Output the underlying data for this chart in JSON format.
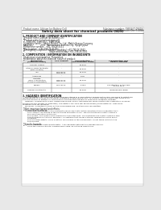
{
  "bg_color": "#e8e8e8",
  "page_bg": "#ffffff",
  "title": "Safety data sheet for chemical products (SDS)",
  "header_left": "Product name: Lithium Ion Battery Cell",
  "header_right_line1": "Substance number: 5SB345T-09019",
  "header_right_line2": "Established / Revision: Dec.7.2016",
  "section1_title": "1. PRODUCT AND COMPANY IDENTIFICATION",
  "section1_lines": [
    "・Product name: Lithium Ion Battery Cell",
    "・Product code: Cylindrical-type cell",
    "     5SB339U, 5SB339UC, 5SB339UA",
    "・Company name:    Sanyo Electric Co., Ltd.  Mobile Energy Company",
    "・Address:            2001  Kaminokawa, Sumoto-City, Hyogo, Japan",
    "・Telephone number:   +81-799-26-4111",
    "・Fax number:   +81-799-26-4129",
    "・Emergency telephone number (Weekday) +81-799-26-3562",
    "                                           (Night and holiday) +81-799-26-3101"
  ],
  "section2_title": "2. COMPOSITION / INFORMATION ON INGREDIENTS",
  "section2_intro": "・Substance or preparation: Preparation",
  "section2_sub": "・Information about the chemical nature of product:",
  "table_headers": [
    "Component\n(Chemical name)",
    "CAS number",
    "Concentration /\nConcentration range",
    "Classification and\nhazard labeling"
  ],
  "table_col1": [
    "Several names",
    "Lithium oxide tantalate\n(LiMn₂CoNiO₂)",
    "Iron",
    "Aluminum",
    "Graphite\n(Mod.in graphite1)\n(Artific.in graphite2)",
    "Copper",
    "Organic electrolyte"
  ],
  "table_col2": [
    "-",
    "-",
    "7439-89-6\n7429-90-5",
    "-",
    "7782-42-5\n7782-42-5",
    "7440-50-8",
    "-"
  ],
  "table_col3": [
    "20-50%",
    "20-50%",
    "15-25%",
    "2-6%",
    "10-25%",
    "5-15%",
    "10-20%"
  ],
  "table_col4": [
    "-",
    "-",
    "-",
    "-",
    "-",
    "Sensitization of the skin\ngroup No.2",
    "Inflammable liquid"
  ],
  "section3_title": "3. HAZARDS IDENTIFICATION",
  "section3_lines": [
    "    For the battery cell, chemical substances are stored in a hermetically sealed metal case, designed to withstand",
    "temperatures in process-to-consumer conditions during normal use. As a result, during normal use, there is no",
    "physical danger of ignition or vaporization and therefore danger of hazardous materials leakage.",
    "    However, if exposed to a fire, added mechanical shock, decomposed, when electrolyte accidentally releases,",
    "the gas maybe vented (or operated). The battery cell case will be breached (of fire-patterns, hazardous",
    "materials may be released.",
    "    Moreover, if heated strongly by the surrounding fire, soot gas may be emitted."
  ],
  "section3_most": "・Most important hazard and effects:",
  "section3_human": "Human health effects:",
  "section3_human_lines": [
    "    Inhalation: The release of the electrolyte has an anesthetic action and stimulates in respiratory tract.",
    "    Skin contact: The release of the electrolyte stimulates a skin. The electrolyte skin contact causes a",
    "    sore and stimulation on the skin.",
    "    Eye contact: The release of the electrolyte stimulates eyes. The electrolyte eye contact causes a sore",
    "    and stimulation on the eye. Especially, a substance that causes a strong inflammation of the eye is",
    "    contained.",
    "    Environmental effects: Since a battery cell remains in the environment, do not throw out it into the",
    "    environment."
  ],
  "section3_specific": "・Specific hazards:",
  "section3_specific_lines": [
    "    If the electrolyte contacts with water, it will generate detrimental hydrogen fluoride.",
    "    Since the used electrolyte is inflammable liquid, do not bring close to fire."
  ]
}
